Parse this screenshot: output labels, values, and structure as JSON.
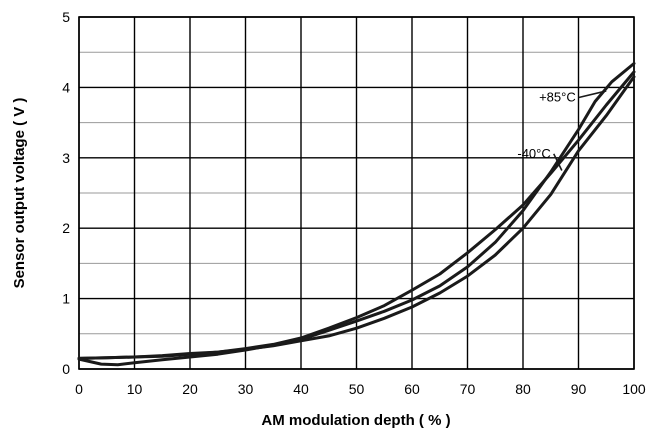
{
  "chart_data": {
    "type": "line",
    "title": "",
    "xlabel": "AM modulation depth ( % )",
    "ylabel": "Sensor output  voltage ( V )",
    "xlim": [
      0,
      100
    ],
    "ylim": [
      0,
      5
    ],
    "x_ticks": [
      "0",
      "10",
      "20",
      "30",
      "40",
      "50",
      "60",
      "70",
      "80",
      "90",
      "100"
    ],
    "y_ticks": [
      "0",
      "1",
      "2",
      "3",
      "4",
      "5"
    ],
    "grid": true,
    "grid_colors": {
      "major": "#000000",
      "minor": "#9a9a9a"
    },
    "line_color": "#1a1a1a",
    "series": [
      {
        "name": "+85°C",
        "x": [
          0,
          5,
          10,
          15,
          20,
          25,
          30,
          35,
          40,
          45,
          50,
          55,
          60,
          65,
          70,
          75,
          80,
          85,
          90,
          95,
          100
        ],
        "y": [
          0.15,
          0.16,
          0.17,
          0.19,
          0.22,
          0.24,
          0.28,
          0.33,
          0.4,
          0.47,
          0.58,
          0.72,
          0.88,
          1.08,
          1.32,
          1.62,
          2.0,
          2.48,
          3.1,
          3.6,
          4.15
        ]
      },
      {
        "name": "-40°C",
        "x": [
          0,
          5,
          10,
          15,
          20,
          25,
          30,
          35,
          40,
          45,
          50,
          55,
          60,
          65,
          70,
          75,
          80,
          85,
          90,
          95,
          100
        ],
        "y": [
          0.15,
          0.16,
          0.17,
          0.18,
          0.21,
          0.24,
          0.29,
          0.35,
          0.44,
          0.58,
          0.73,
          0.9,
          1.12,
          1.35,
          1.65,
          1.98,
          2.33,
          2.78,
          3.25,
          3.75,
          4.22
        ]
      },
      {
        "x": [
          0,
          4,
          7,
          10,
          15,
          20,
          25,
          30,
          35,
          40,
          45,
          50,
          55,
          60,
          65,
          70,
          75,
          80,
          85,
          90,
          93,
          96,
          100
        ],
        "y": [
          0.14,
          0.07,
          0.06,
          0.09,
          0.13,
          0.17,
          0.21,
          0.27,
          0.34,
          0.42,
          0.55,
          0.68,
          0.82,
          0.98,
          1.18,
          1.45,
          1.8,
          2.25,
          2.8,
          3.4,
          3.8,
          4.08,
          4.34
        ]
      }
    ],
    "annotations": [
      {
        "text": "+85°C",
        "x": 89.5,
        "y": 3.8,
        "pointer_to": {
          "x": 95,
          "y": 3.95
        }
      },
      {
        "text": "-40°C",
        "x": 85.0,
        "y": 3.0,
        "pointer_to": {
          "x": 87,
          "y": 2.82
        }
      }
    ]
  }
}
